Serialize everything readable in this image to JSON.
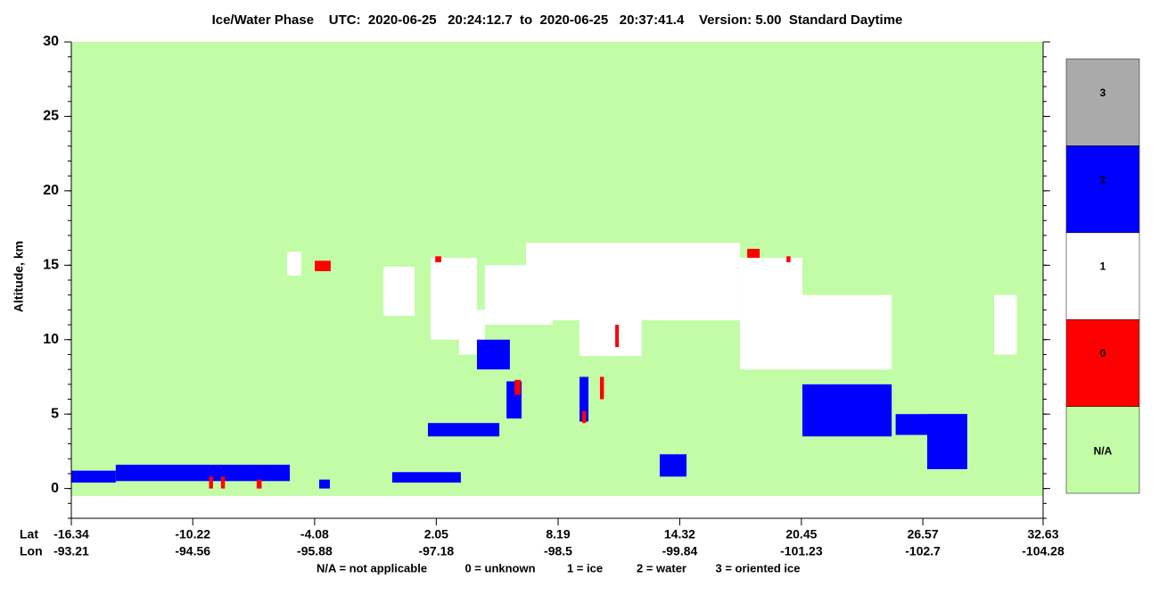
{
  "chart_data": {
    "type": "curtain",
    "title": "Ice/Water Phase    UTC:  2020-06-25   20:24:12.7  to  2020-06-25   20:37:41.4    Version: 5.00  Standard Daytime",
    "y_label": "Altitude, km",
    "x_label": "Lat",
    "x2_label": "Lon",
    "xlim": [
      -16.34,
      32.63
    ],
    "xticks": [
      -16.34,
      -10.22,
      -4.08,
      2.05,
      8.19,
      14.32,
      20.45,
      26.57,
      32.63
    ],
    "lon_ticks": [
      -93.21,
      -94.56,
      -95.88,
      -97.18,
      -98.5,
      -99.84,
      -101.23,
      -102.7,
      -104.28
    ],
    "ylim": [
      -2,
      30
    ],
    "yticks": [
      0,
      5,
      10,
      15,
      20,
      25,
      30
    ],
    "data_bottom": -0.5,
    "background_color": "#c3fca7",
    "colorbar": {
      "categories": [
        "N/A",
        "0",
        "1",
        "2",
        "3"
      ],
      "colors": [
        "#c3fca7",
        "#ff0000",
        "#ffffff",
        "#0000ff",
        "#aaaaaa"
      ]
    },
    "legend_notes": [
      "N/A = not applicable",
      "0 = unknown",
      "1 = ice",
      "2 = water",
      "3 = oriented ice"
    ],
    "features": [
      {
        "phase": 2,
        "lat": [
          -16.34,
          -14.1
        ],
        "alt": [
          0.4,
          1.2
        ]
      },
      {
        "phase": 2,
        "lat": [
          -14.1,
          -5.33
        ],
        "alt": [
          0.5,
          1.6
        ]
      },
      {
        "phase": 0,
        "lat": [
          -9.4,
          -9.2
        ],
        "alt": [
          0,
          0.8
        ]
      },
      {
        "phase": 0,
        "lat": [
          -8.8,
          -8.6
        ],
        "alt": [
          0,
          0.8
        ]
      },
      {
        "phase": 0,
        "lat": [
          -7.0,
          -6.75
        ],
        "alt": [
          0,
          0.6
        ]
      },
      {
        "phase": 2,
        "lat": [
          -3.85,
          -3.31
        ],
        "alt": [
          0,
          0.6
        ]
      },
      {
        "phase": 1,
        "lat": [
          -5.47,
          -4.75
        ],
        "alt": [
          14.3,
          15.9
        ]
      },
      {
        "phase": 0,
        "lat": [
          -4.07,
          -3.27
        ],
        "alt": [
          14.6,
          15.3
        ]
      },
      {
        "phase": 1,
        "lat": [
          -0.61,
          0.96
        ],
        "alt": [
          11.6,
          14.9
        ]
      },
      {
        "phase": 2,
        "lat": [
          -0.17,
          3.29
        ],
        "alt": [
          0.4,
          1.1
        ]
      },
      {
        "phase": 1,
        "lat": [
          1.77,
          4.1
        ],
        "alt": [
          10,
          15.5
        ]
      },
      {
        "phase": 1,
        "lat": [
          3.2,
          4.5
        ],
        "alt": [
          9,
          12
        ]
      },
      {
        "phase": 1,
        "lat": [
          4.5,
          7.92
        ],
        "alt": [
          11,
          15
        ]
      },
      {
        "phase": 1,
        "lat": [
          6.57,
          17.36
        ],
        "alt": [
          11.3,
          16.5
        ]
      },
      {
        "phase": 1,
        "lat": [
          9.27,
          12.4
        ],
        "alt": [
          8.9,
          11.5
        ]
      },
      {
        "phase": 1,
        "lat": [
          17.36,
          20.5
        ],
        "alt": [
          8,
          15.5
        ]
      },
      {
        "phase": 1,
        "lat": [
          20.5,
          25.0
        ],
        "alt": [
          8,
          13
        ]
      },
      {
        "phase": 1,
        "lat": [
          30.16,
          31.3
        ],
        "alt": [
          9,
          13
        ]
      },
      {
        "phase": 2,
        "lat": [
          4.1,
          5.76
        ],
        "alt": [
          8,
          10
        ]
      },
      {
        "phase": 2,
        "lat": [
          5.59,
          6.35
        ],
        "alt": [
          4.7,
          7.2
        ]
      },
      {
        "phase": 2,
        "lat": [
          1.63,
          5.23
        ],
        "alt": [
          3.5,
          4.4
        ]
      },
      {
        "phase": 2,
        "lat": [
          9.27,
          9.72
        ],
        "alt": [
          4.5,
          7.5
        ]
      },
      {
        "phase": 2,
        "lat": [
          13.31,
          14.66
        ],
        "alt": [
          0.8,
          2.3
        ]
      },
      {
        "phase": 2,
        "lat": [
          20.5,
          25.0
        ],
        "alt": [
          3.5,
          7
        ]
      },
      {
        "phase": 2,
        "lat": [
          26.79,
          28.81
        ],
        "alt": [
          1.3,
          5
        ]
      },
      {
        "phase": 2,
        "lat": [
          25.2,
          28.81
        ],
        "alt": [
          3.6,
          5
        ]
      },
      {
        "phase": 0,
        "lat": [
          11.07,
          11.25
        ],
        "alt": [
          9.5,
          11
        ]
      },
      {
        "phase": 0,
        "lat": [
          17.72,
          18.35
        ],
        "alt": [
          15.5,
          16.1
        ]
      },
      {
        "phase": 0,
        "lat": [
          19.7,
          19.9
        ],
        "alt": [
          15.2,
          15.6
        ]
      },
      {
        "phase": 0,
        "lat": [
          2.0,
          2.3
        ],
        "alt": [
          15.2,
          15.6
        ]
      },
      {
        "phase": 0,
        "lat": [
          9.4,
          9.6
        ],
        "alt": [
          4.4,
          5.2
        ]
      },
      {
        "phase": 0,
        "lat": [
          6.0,
          6.3
        ],
        "alt": [
          6.3,
          7.3
        ]
      },
      {
        "phase": 0,
        "lat": [
          10.3,
          10.5
        ],
        "alt": [
          6,
          7.5
        ]
      }
    ]
  }
}
